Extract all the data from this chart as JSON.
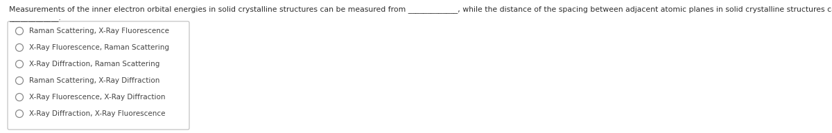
{
  "question_line1": "Measurements of the inner electron orbital energies in solid crystalline structures can be measured from _____________, while the distance of the spacing between adjacent atomic planes in solid crystalline structures can be measured by",
  "question_line2": "_____________.",
  "options": [
    "Raman Scattering, X-Ray Fluorescence",
    "X-Ray Fluorescence, Raman Scattering",
    "X-Ray Diffraction, Raman Scattering",
    "Raman Scattering, X-Ray Diffraction",
    "X-Ray Fluorescence, X-Ray Diffraction",
    "X-Ray Diffraction, X-Ray Fluorescence"
  ],
  "bg_color": "#ffffff",
  "text_color": "#2d2d2d",
  "option_text_color": "#444444",
  "box_edge_color": "#bbbbbb",
  "box_face_color": "#ffffff",
  "question_fontsize": 7.8,
  "option_fontsize": 7.5,
  "fig_width": 12.0,
  "fig_height": 1.93
}
